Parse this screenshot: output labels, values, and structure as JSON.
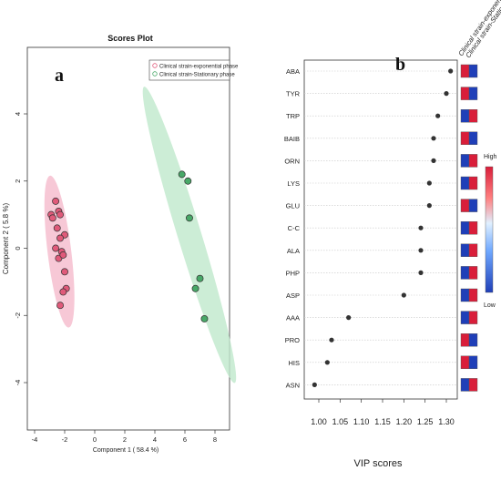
{
  "panels": {
    "a": "a",
    "b": "b"
  },
  "chart_data": [
    {
      "type": "scatter",
      "title": "Scores Plot",
      "xlabel": "Component 1 ( 58.4 %)",
      "ylabel": "Component 2 ( 5.8 %)",
      "xlim": [
        -4,
        8
      ],
      "ylim": [
        -4,
        4
      ],
      "xticks": [
        "-4",
        "-2",
        "0",
        "2",
        "4",
        "6",
        "8"
      ],
      "yticks": [
        "-4",
        "-2",
        "0",
        "2",
        "4"
      ],
      "legend_position": "top-right",
      "colors": {
        "exponential": "#e05a7a",
        "stationary": "#48a868",
        "ellipse_exp": "#f4b6c8",
        "ellipse_stat": "#bfe8cc"
      },
      "series": [
        {
          "name": "Clinical strain-exponential phase",
          "x": [
            -2.6,
            -2.4,
            -2.9,
            -2.3,
            -2.8,
            -2.5,
            -2.0,
            -2.3,
            -2.6,
            -2.2,
            -2.4,
            -2.1,
            -2.0,
            -1.9,
            -2.1,
            -2.3
          ],
          "y": [
            1.4,
            1.1,
            1.0,
            1.0,
            0.9,
            0.6,
            0.4,
            0.3,
            0.0,
            -0.1,
            -0.3,
            -0.2,
            -0.7,
            -1.2,
            -1.3,
            -1.7
          ]
        },
        {
          "name": "Clinical strain-Stationary phase",
          "x": [
            5.8,
            6.2,
            6.3,
            7.0,
            6.7,
            7.3
          ],
          "y": [
            2.2,
            2.0,
            0.9,
            -0.9,
            -1.2,
            -2.1
          ]
        }
      ]
    },
    {
      "type": "scatter",
      "xlabel": "VIP scores",
      "xlim": [
        0.98,
        1.32
      ],
      "xticks": [
        "1.00",
        "1.05",
        "1.10",
        "1.15",
        "1.20",
        "1.25",
        "1.30"
      ],
      "categories": [
        "ABA",
        "TYR",
        "TRP",
        "BAIB",
        "ORN",
        "LYS",
        "GLU",
        "C-C",
        "ALA",
        "PHP",
        "ASP",
        "AAA",
        "PRO",
        "HIS",
        "ASN"
      ],
      "values": [
        1.31,
        1.3,
        1.28,
        1.27,
        1.27,
        1.26,
        1.26,
        1.24,
        1.24,
        1.24,
        1.2,
        1.07,
        1.03,
        1.02,
        0.99
      ],
      "heatmap_columns": [
        "Clinical strain-exponential",
        "Clinical strain-Stationary"
      ],
      "heatmap": [
        [
          "high",
          "low"
        ],
        [
          "high",
          "low"
        ],
        [
          "low",
          "high"
        ],
        [
          "high",
          "low"
        ],
        [
          "low",
          "high"
        ],
        [
          "low",
          "high"
        ],
        [
          "high",
          "low"
        ],
        [
          "low",
          "high"
        ],
        [
          "low",
          "high"
        ],
        [
          "low",
          "high"
        ],
        [
          "low",
          "high"
        ],
        [
          "low",
          "high"
        ],
        [
          "high",
          "low"
        ],
        [
          "high",
          "low"
        ],
        [
          "low",
          "high"
        ]
      ],
      "colorbar": {
        "high": "High",
        "low": "Low",
        "colors": [
          "#1f3fb8",
          "#d91e3a"
        ]
      }
    }
  ]
}
